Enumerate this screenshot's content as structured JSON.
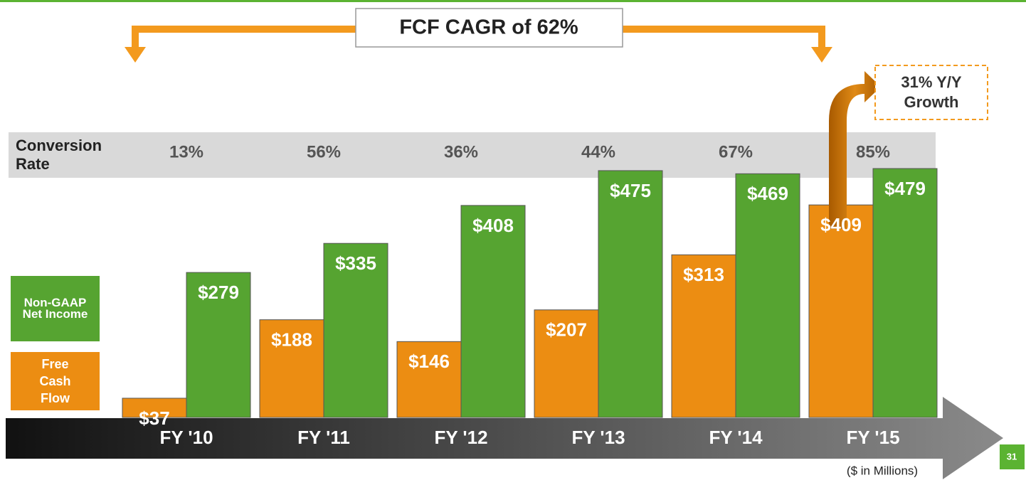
{
  "chart_data": {
    "type": "bar",
    "categories": [
      "FY '10",
      "FY '11",
      "FY '12",
      "FY '13",
      "FY '14",
      "FY '15"
    ],
    "series": [
      {
        "name": "Free Cash Flow",
        "color": "#ec8d12",
        "values": [
          37,
          188,
          146,
          207,
          313,
          409
        ],
        "value_labels": [
          "$37",
          "$188",
          "$146",
          "$207",
          "$313",
          "$409"
        ]
      },
      {
        "name": "Non-GAAP Net Income",
        "color": "#56a431",
        "values": [
          279,
          335,
          408,
          475,
          469,
          479
        ],
        "value_labels": [
          "$279",
          "$335",
          "$408",
          "$475",
          "$469",
          "$479"
        ]
      }
    ],
    "conversion_rate": {
      "label": "Conversion Rate",
      "values": [
        13,
        56,
        36,
        44,
        67,
        85
      ],
      "value_labels": [
        "13%",
        "56%",
        "36%",
        "44%",
        "67%",
        "85%"
      ]
    },
    "annotations": [
      "FCF CAGR of 62%",
      "31% Y/Y Growth"
    ],
    "unit_note": "($ in Millions)",
    "page_number": "31"
  }
}
